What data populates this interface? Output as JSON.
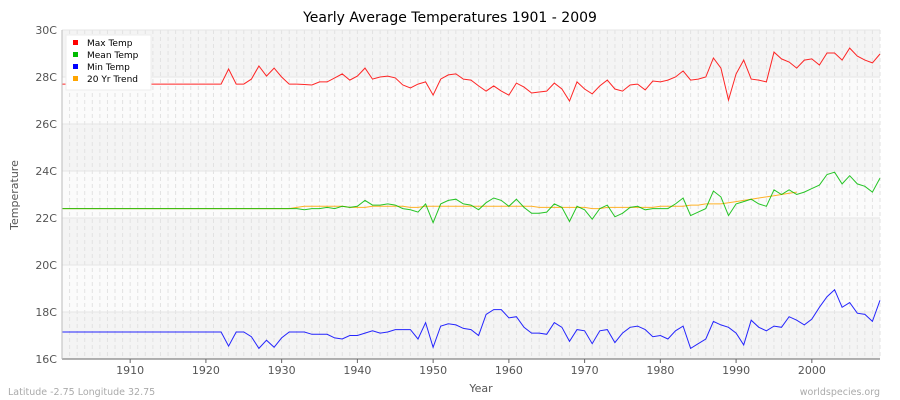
{
  "chart_data": {
    "type": "line",
    "title": "Yearly Average Temperatures 1901 - 2009",
    "xlabel": "Year",
    "ylabel": "Temperature",
    "xlim": [
      1901,
      2009
    ],
    "ylim": [
      16,
      30
    ],
    "x_ticks": [
      1910,
      1920,
      1930,
      1940,
      1950,
      1960,
      1970,
      1980,
      1990,
      2000
    ],
    "y_ticks": [
      "16C",
      "18C",
      "20C",
      "22C",
      "24C",
      "26C",
      "28C",
      "30C"
    ],
    "y_tick_values": [
      16,
      18,
      20,
      22,
      24,
      26,
      28,
      30
    ],
    "grid": true,
    "legend_placement": "top-left",
    "footer_left": "Latitude -2.75 Longitude 32.75",
    "footer_right": "worldspecies.org",
    "series": [
      {
        "name": "Max Temp",
        "color": "#ff0000",
        "start_year": 1901,
        "values": [
          27.7,
          27.7,
          27.7,
          27.7,
          27.7,
          27.7,
          27.7,
          27.7,
          27.7,
          27.7,
          27.7,
          27.7,
          27.7,
          27.7,
          27.7,
          27.7,
          27.7,
          27.7,
          27.7,
          27.7,
          27.7,
          27.7,
          28.34,
          27.7,
          27.7,
          27.91,
          28.47,
          28.04,
          28.38,
          28.0,
          27.7,
          27.7,
          27.68,
          27.66,
          27.79,
          27.79,
          27.96,
          28.13,
          27.87,
          28.04,
          28.38,
          27.91,
          28.0,
          28.04,
          27.96,
          27.66,
          27.53,
          27.7,
          27.79,
          27.23,
          27.91,
          28.09,
          28.13,
          27.91,
          27.87,
          27.62,
          27.4,
          27.62,
          27.4,
          27.23,
          27.74,
          27.57,
          27.32,
          27.36,
          27.4,
          27.74,
          27.49,
          26.98,
          27.79,
          27.49,
          27.28,
          27.62,
          27.87,
          27.49,
          27.4,
          27.66,
          27.7,
          27.45,
          27.83,
          27.79,
          27.87,
          28.0,
          28.26,
          27.87,
          27.91,
          28.0,
          28.81,
          28.38,
          27.02,
          28.13,
          28.72,
          27.91,
          27.87,
          27.79,
          29.06,
          28.77,
          28.64,
          28.38,
          28.72,
          28.77,
          28.51,
          29.02,
          29.02,
          28.72,
          29.23,
          28.89,
          28.72,
          28.6,
          28.98
        ]
      },
      {
        "name": "Mean Temp",
        "color": "#00bb00",
        "start_year": 1901,
        "values": [
          22.4,
          22.4,
          22.4,
          22.4,
          22.4,
          22.4,
          22.4,
          22.4,
          22.4,
          22.4,
          22.4,
          22.4,
          22.4,
          22.4,
          22.4,
          22.4,
          22.4,
          22.4,
          22.4,
          22.4,
          22.4,
          22.4,
          22.4,
          22.4,
          22.4,
          22.4,
          22.4,
          22.4,
          22.4,
          22.4,
          22.4,
          22.4,
          22.35,
          22.4,
          22.4,
          22.45,
          22.4,
          22.5,
          22.45,
          22.5,
          22.75,
          22.55,
          22.55,
          22.6,
          22.55,
          22.4,
          22.35,
          22.25,
          22.6,
          21.8,
          22.6,
          22.75,
          22.8,
          22.6,
          22.55,
          22.35,
          22.65,
          22.85,
          22.75,
          22.5,
          22.8,
          22.45,
          22.2,
          22.2,
          22.25,
          22.6,
          22.45,
          21.85,
          22.5,
          22.35,
          21.95,
          22.4,
          22.55,
          22.05,
          22.2,
          22.45,
          22.5,
          22.35,
          22.4,
          22.4,
          22.4,
          22.6,
          22.85,
          22.1,
          22.25,
          22.4,
          23.15,
          22.9,
          22.1,
          22.6,
          22.7,
          22.8,
          22.6,
          22.5,
          23.2,
          23.0,
          23.2,
          23.0,
          23.1,
          23.25,
          23.4,
          23.85,
          23.95,
          23.45,
          23.8,
          23.45,
          23.35,
          23.1,
          23.7
        ]
      },
      {
        "name": "Min Temp",
        "color": "#0000ff",
        "start_year": 1901,
        "values": [
          17.15,
          17.15,
          17.15,
          17.15,
          17.15,
          17.15,
          17.15,
          17.15,
          17.15,
          17.15,
          17.15,
          17.15,
          17.15,
          17.15,
          17.15,
          17.15,
          17.15,
          17.15,
          17.15,
          17.15,
          17.15,
          17.15,
          16.55,
          17.15,
          17.15,
          16.95,
          16.45,
          16.8,
          16.5,
          16.9,
          17.15,
          17.15,
          17.15,
          17.05,
          17.05,
          17.05,
          16.9,
          16.85,
          17.0,
          17.0,
          17.1,
          17.2,
          17.1,
          17.15,
          17.25,
          17.25,
          17.25,
          16.85,
          17.55,
          16.5,
          17.4,
          17.5,
          17.45,
          17.3,
          17.25,
          17.0,
          17.9,
          18.1,
          18.1,
          17.75,
          17.8,
          17.35,
          17.1,
          17.1,
          17.05,
          17.55,
          17.35,
          16.75,
          17.25,
          17.2,
          16.65,
          17.2,
          17.25,
          16.7,
          17.1,
          17.35,
          17.4,
          17.25,
          16.95,
          17.0,
          16.85,
          17.2,
          17.4,
          16.45,
          16.65,
          16.85,
          17.6,
          17.45,
          17.35,
          17.1,
          16.6,
          17.65,
          17.35,
          17.2,
          17.4,
          17.35,
          17.8,
          17.65,
          17.45,
          17.7,
          18.2,
          18.65,
          18.95,
          18.2,
          18.4,
          17.95,
          17.9,
          17.6,
          18.5
        ]
      },
      {
        "name": "20 Yr Trend",
        "color": "#ffa500",
        "start_year": 1901,
        "values": [
          22.4,
          22.4,
          22.4,
          22.4,
          22.4,
          22.4,
          22.4,
          22.4,
          22.4,
          22.4,
          22.4,
          22.4,
          22.4,
          22.4,
          22.4,
          22.4,
          22.4,
          22.4,
          22.4,
          22.4,
          22.4,
          22.4,
          22.4,
          22.4,
          22.4,
          22.4,
          22.4,
          22.4,
          22.4,
          22.4,
          22.4,
          22.45,
          22.5,
          22.5,
          22.5,
          22.5,
          22.5,
          22.5,
          22.45,
          22.45,
          22.45,
          22.5,
          22.5,
          22.5,
          22.5,
          22.5,
          22.45,
          22.45,
          22.5,
          22.5,
          22.5,
          22.5,
          22.5,
          22.5,
          22.5,
          22.5,
          22.5,
          22.5,
          22.5,
          22.5,
          22.5,
          22.5,
          22.5,
          22.45,
          22.45,
          22.45,
          22.45,
          22.45,
          22.45,
          22.45,
          22.4,
          22.4,
          22.45,
          22.45,
          22.45,
          22.45,
          22.45,
          22.45,
          22.45,
          22.5,
          22.5,
          22.5,
          22.5,
          22.55,
          22.55,
          22.6,
          22.6,
          22.6,
          22.65,
          22.7,
          22.75,
          22.8,
          22.85,
          22.9,
          22.95,
          23.0,
          23.05,
          23.1
        ]
      }
    ]
  }
}
